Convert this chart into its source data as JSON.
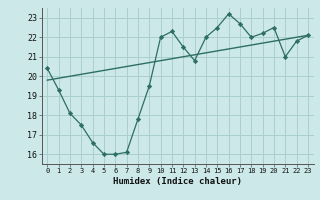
{
  "xlabel": "Humidex (Indice chaleur)",
  "ylabel": "",
  "bg_color": "#cce8e8",
  "grid_color": "#aacfcf",
  "line_color": "#2d6e65",
  "xlim": [
    -0.5,
    23.5
  ],
  "ylim": [
    15.5,
    23.5
  ],
  "xticks": [
    0,
    1,
    2,
    3,
    4,
    5,
    6,
    7,
    8,
    9,
    10,
    11,
    12,
    13,
    14,
    15,
    16,
    17,
    18,
    19,
    20,
    21,
    22,
    23
  ],
  "yticks": [
    16,
    17,
    18,
    19,
    20,
    21,
    22,
    23
  ],
  "jagged_x": [
    0,
    1,
    2,
    3,
    4,
    5,
    6,
    7,
    8,
    9,
    10,
    11,
    12,
    13,
    14,
    15,
    16,
    17,
    18,
    19,
    20,
    21,
    22,
    23
  ],
  "jagged_y": [
    20.4,
    19.3,
    18.1,
    17.5,
    16.6,
    16.0,
    16.0,
    16.1,
    17.8,
    19.5,
    22.0,
    22.3,
    21.5,
    20.8,
    22.0,
    22.5,
    23.2,
    22.7,
    22.0,
    22.2,
    22.5,
    21.0,
    21.8,
    22.1
  ],
  "trend_x": [
    0,
    23
  ],
  "trend_y": [
    19.8,
    22.1
  ]
}
